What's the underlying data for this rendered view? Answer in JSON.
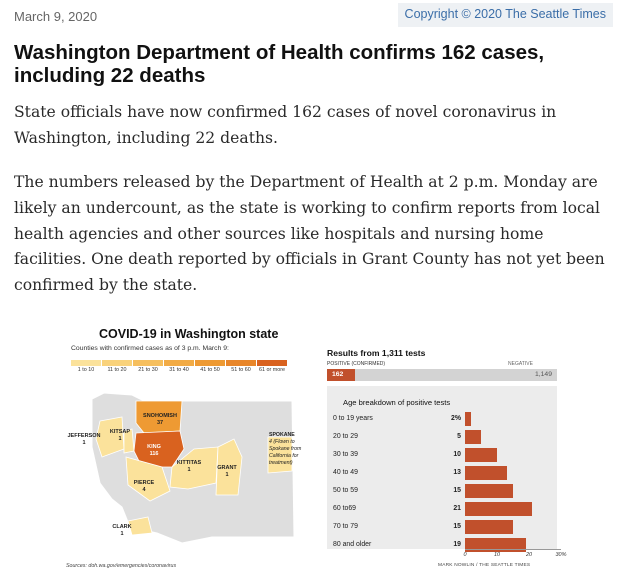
{
  "header": {
    "date": "March 9, 2020",
    "copyright": "Copyright © 2020 The Seattle Times"
  },
  "article": {
    "headline": "Washington Department of Health confirms 162 cases, including 22 deaths",
    "paragraphs": [
      "State officials have now confirmed 162 cases of novel coronavirus in Washington, including 22 deaths.",
      "The numbers released by the Department of Health at 2 p.m. Monday are likely an undercount, as the state is working to confirm reports from local health agencies and other sources like hospitals and nursing home facilities. One death reported by officials in Grant County has not yet been confirmed by the state."
    ]
  },
  "graphic": {
    "map": {
      "title": "COVID-19 in Washington state",
      "subtitle": "Counties with confirmed cases as of 3 p.m. March 9:",
      "legend": [
        {
          "label": "1 to 10",
          "color": "#fbe29b"
        },
        {
          "label": "11 to 20",
          "color": "#f9d27b"
        },
        {
          "label": "21 to 30",
          "color": "#f6bf5e"
        },
        {
          "label": "31 to 40",
          "color": "#f2ab45"
        },
        {
          "label": "41 to 50",
          "color": "#ee9a33"
        },
        {
          "label": "51 to 60",
          "color": "#e8862a"
        },
        {
          "label": "61 or more",
          "color": "#d9621f"
        }
      ],
      "counties": [
        {
          "name": "SNOHOMISH",
          "count": "37"
        },
        {
          "name": "KING",
          "count": "116"
        },
        {
          "name": "KITSAP",
          "count": "1"
        },
        {
          "name": "JEFFERSON",
          "count": "1"
        },
        {
          "name": "PIERCE",
          "count": "4"
        },
        {
          "name": "KITTITAS",
          "count": "1"
        },
        {
          "name": "GRANT",
          "count": "1"
        },
        {
          "name": "SPOKANE",
          "count": "4 (Flown to Spokane from California for treatment)"
        },
        {
          "name": "CLARK",
          "count": "1"
        }
      ],
      "spokane_lines": [
        "SPOKANE",
        "4 (Flown to",
        "Spokane from",
        "California for",
        "treatment)"
      ],
      "source": "Sources: doh.wa.gov/emergencies/coronavirus"
    },
    "tests": {
      "title": "Results from 1,311 tests",
      "positive_label": "POSITIVE (CONFIRMED)",
      "negative_label": "NEGATIVE",
      "positive": 162,
      "negative": 1149,
      "positive_text": "162",
      "negative_text": "1,149"
    },
    "credit": "MARK NOWLIN / THE SEATTLE TIMES",
    "colors": {
      "bar": "#c1502c",
      "panel": "#ececec",
      "land": "#dedede"
    }
  },
  "chart_data": {
    "type": "bar",
    "title": "Age breakdown of positive tests",
    "categories": [
      "0 to 19 years",
      "20 to 29",
      "30 to 39",
      "40 to 49",
      "50 to 59",
      "60 to69",
      "70 to 79",
      "80 and older"
    ],
    "values": [
      2,
      5,
      10,
      13,
      15,
      21,
      15,
      19
    ],
    "value_labels": [
      "2%",
      "5",
      "10",
      "13",
      "15",
      "21",
      "15",
      "19"
    ],
    "xticks": [
      "0",
      "10",
      "20",
      "30%"
    ],
    "xlim": [
      0,
      30
    ]
  }
}
